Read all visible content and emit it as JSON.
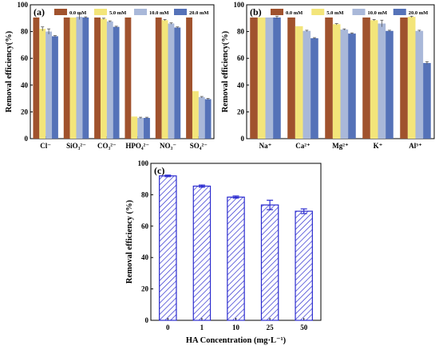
{
  "chart_data": [
    {
      "panel": "(a)",
      "type": "bar",
      "ylabel": "Removal efficiency(%)",
      "xlabel": "",
      "ylim": [
        0,
        100
      ],
      "yticks": [
        "0",
        "20",
        "40",
        "60",
        "80",
        "100"
      ],
      "categories": [
        "Cl⁻",
        "SiO₃²⁻",
        "CO₃²⁻",
        "HPO₄²⁻",
        "NO₃⁻",
        "SO₄²⁻"
      ],
      "series": [
        {
          "name": "0.0 mM",
          "color": "#a0522d",
          "values": [
            90.5,
            90.5,
            90.5,
            90.5,
            90.5,
            90.5
          ],
          "errors": [
            0,
            0,
            0,
            0,
            0,
            0
          ]
        },
        {
          "name": "5.0 mM",
          "color": "#f3e57a",
          "values": [
            82,
            90.5,
            89.5,
            16.5,
            88.5,
            35.5
          ],
          "errors": [
            1.5,
            0,
            0.5,
            0,
            0.5,
            0
          ]
        },
        {
          "name": "10.0 mM",
          "color": "#a9b8d9",
          "values": [
            80,
            91,
            87.5,
            15.5,
            86,
            31
          ],
          "errors": [
            2,
            2,
            0.5,
            0.5,
            0.5,
            0.5
          ]
        },
        {
          "name": "20.0 mM",
          "color": "#5572b8",
          "values": [
            76.5,
            90.5,
            83.5,
            15.5,
            83,
            29.5
          ],
          "errors": [
            0.5,
            0.5,
            0.5,
            0.5,
            0.5,
            0.5
          ]
        }
      ]
    },
    {
      "panel": "(b)",
      "type": "bar",
      "ylabel": "Removal efficiency(%)",
      "xlabel": "",
      "ylim": [
        0,
        100
      ],
      "yticks": [
        "0",
        "20",
        "40",
        "60",
        "80",
        "100"
      ],
      "categories": [
        "Na⁺",
        "Ca²⁺",
        "Mg²⁺",
        "K⁺",
        "Al³⁺"
      ],
      "series": [
        {
          "name": "0.0 mM",
          "color": "#a0522d",
          "values": [
            90.5,
            90.5,
            90.5,
            90.5,
            90.5
          ],
          "errors": [
            0,
            0,
            0,
            0,
            0
          ]
        },
        {
          "name": "5.0 mM",
          "color": "#f3e57a",
          "values": [
            90.5,
            84,
            85.5,
            88.5,
            91
          ],
          "errors": [
            0,
            0,
            0.5,
            0.5,
            0.5
          ]
        },
        {
          "name": "10.0 mM",
          "color": "#a9b8d9",
          "values": [
            90.5,
            80.5,
            81.5,
            86,
            80.5
          ],
          "errors": [
            0,
            0.5,
            0.5,
            2.5,
            0.5
          ]
        },
        {
          "name": "20.0 mM",
          "color": "#5572b8",
          "values": [
            90.5,
            75,
            78.5,
            80.5,
            56.5
          ],
          "errors": [
            1,
            0.5,
            0.5,
            0.5,
            1
          ]
        }
      ]
    },
    {
      "panel": "(c)",
      "type": "bar",
      "ylabel": "Removal efficiency (%)",
      "xlabel": "HA Concentration (mg·L⁻¹)",
      "ylim": [
        0,
        100
      ],
      "yticks": [
        "0",
        "20",
        "40",
        "60",
        "80",
        "100"
      ],
      "categories": [
        "0",
        "1",
        "10",
        "25",
        "50"
      ],
      "series": [
        {
          "name": "",
          "color": "#2b2bcf",
          "values": [
            92,
            85.5,
            78.5,
            73.5,
            69.5
          ],
          "errors": [
            0.5,
            0.7,
            0.7,
            3,
            1.5
          ]
        }
      ]
    }
  ]
}
